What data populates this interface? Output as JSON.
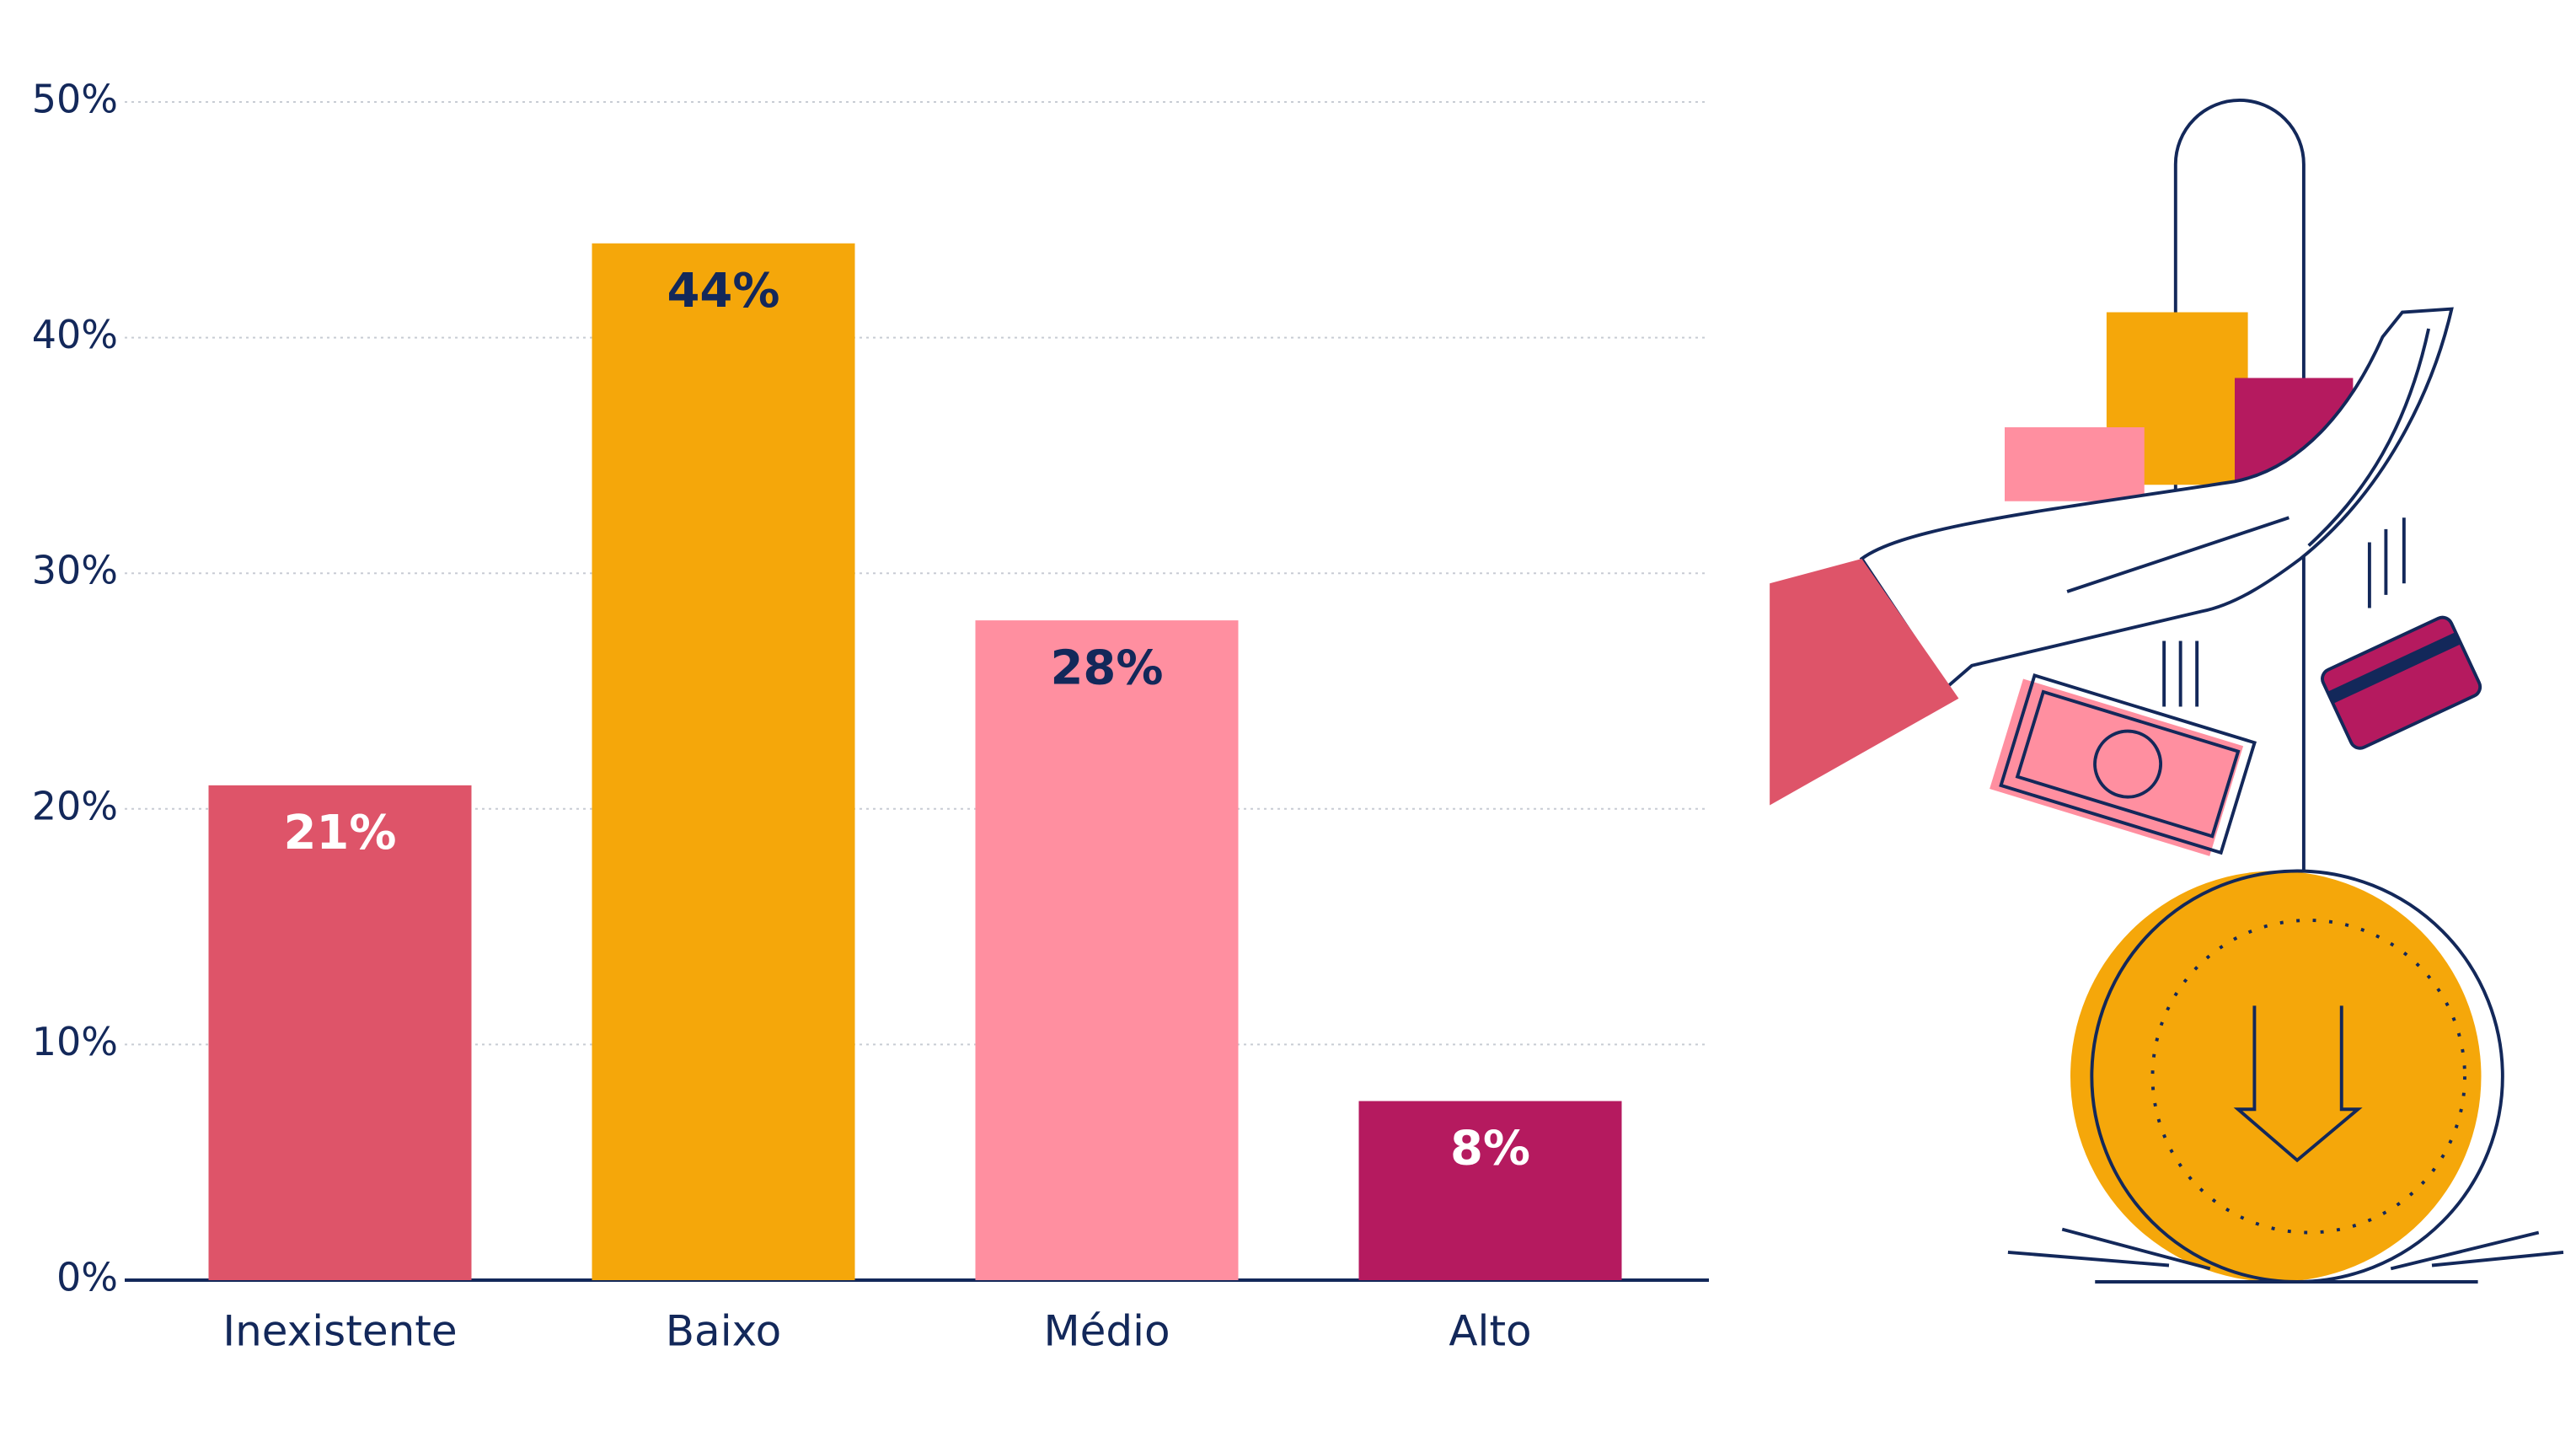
{
  "chart_data": {
    "type": "bar",
    "categories": [
      "Inexistente",
      "Baixo",
      "Médio",
      "Alto"
    ],
    "values": [
      21,
      44,
      28,
      7.6
    ],
    "value_labels": [
      "21%",
      "44%",
      "28%",
      "8%"
    ],
    "colors": [
      "#de5469",
      "#f5a70a",
      "#ff8fa0",
      "#b51a5f"
    ],
    "ylim": [
      0,
      50
    ],
    "yticks": [
      {
        "value": 0,
        "label": "0%"
      },
      {
        "value": 10,
        "label": "10%"
      },
      {
        "value": 20,
        "label": "20%"
      },
      {
        "value": 30,
        "label": "30%"
      },
      {
        "value": 40,
        "label": "40%"
      },
      {
        "value": 50,
        "label": "50%"
      }
    ],
    "grid": true
  }
}
